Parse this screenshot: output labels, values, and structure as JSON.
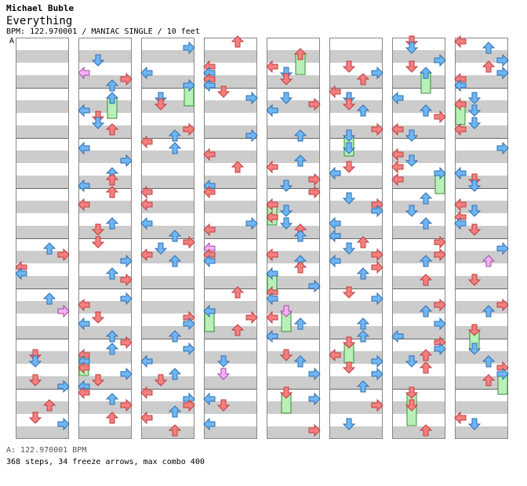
{
  "header": {
    "artist": "Michael Buble",
    "song": "Everything",
    "info": "BPM: 122.970001 / MANIAC SINGLE / 10 feet",
    "segment_label": "A"
  },
  "footer": {
    "bpm_line": "A: 122.970001 BPM",
    "stats_line": "368 steps, 34 freeze arrows, max combo 400"
  },
  "colors": {
    "stripe": "#cccccc",
    "background": "#ffffff",
    "border": "#888888",
    "quarter_arrow": "#f47f7f",
    "quarter_arrow_dark": "#c23d3d",
    "eighth_arrow": "#6fb6f4",
    "eighth_arrow_dark": "#2e6fb0",
    "other_arrow": "#f5b0f5",
    "other_arrow_dark": "#a24ca2",
    "freeze": "#b8f0b8",
    "freeze_dark": "#3b8a3b"
  },
  "chart": {
    "columns": 8,
    "measures_per_column": 8
  }
}
